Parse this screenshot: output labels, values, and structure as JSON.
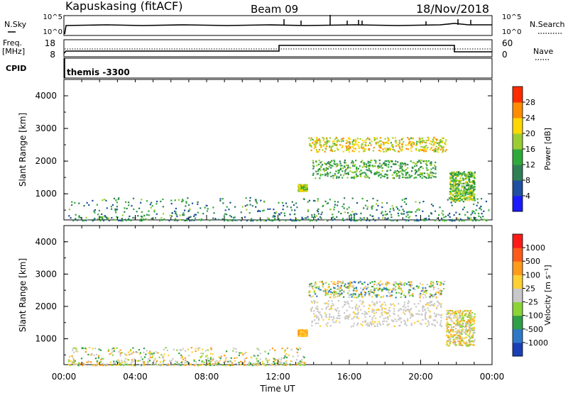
{
  "header": {
    "station": "Kapuskasing (fitACF)",
    "beam": "Beam 09",
    "date": "18/Nov/2018"
  },
  "noise_panel": {
    "left_label": "N.Sky",
    "left_ticks": [
      "10^5",
      "10^0"
    ],
    "right_ticks": [
      "10^5",
      "10^0"
    ],
    "right_label": "N.Search",
    "legend_style": "dotted"
  },
  "freq_panel": {
    "left_label_line1": "Freq.",
    "left_label_line2": "[MHz]",
    "left_ticks": [
      "18",
      "8"
    ],
    "right_ticks": [
      "60",
      "0"
    ],
    "right_label": "Nave",
    "legend_style": "dotted"
  },
  "cpid_panel": {
    "label": "CPID",
    "program": "themis -3300"
  },
  "chart_data": [
    {
      "type": "heatmap",
      "name": "power",
      "ylabel": "Slant Range [km]",
      "yticks": [
        "1000",
        "2000",
        "3000",
        "4000"
      ],
      "ylim": [
        200,
        4500
      ],
      "xlim": [
        0,
        24
      ],
      "colorbar": {
        "label": "Power [dB]",
        "ticks": [
          "4",
          "8",
          "12",
          "16",
          "20",
          "24",
          "28"
        ],
        "range": [
          0,
          30
        ],
        "colors": [
          "#1a1aff",
          "#1f4fa0",
          "#2f7f55",
          "#2faa3a",
          "#9acd32",
          "#ffd700",
          "#ff8c00",
          "#ff2a00"
        ]
      },
      "regions": [
        {
          "t0": 0.2,
          "t1": 23.9,
          "r0": 200,
          "r1": 900,
          "level": 9
        },
        {
          "t0": 13.7,
          "t1": 21.4,
          "r0": 2300,
          "r1": 2750,
          "level": 19
        },
        {
          "t0": 13.9,
          "t1": 20.8,
          "r0": 1500,
          "r1": 2050,
          "level": 12
        },
        {
          "t0": 21.6,
          "t1": 23.0,
          "r0": 800,
          "r1": 1700,
          "level": 14
        },
        {
          "t0": 13.1,
          "t1": 13.6,
          "r0": 1100,
          "r1": 1300,
          "level": 16
        }
      ]
    },
    {
      "type": "heatmap",
      "name": "velocity",
      "ylabel": "Slant Range [km]",
      "yticks": [
        "1000",
        "2000",
        "3000",
        "4000"
      ],
      "ylim": [
        200,
        4500
      ],
      "xlim": [
        0,
        24
      ],
      "xticks": [
        "00:00",
        "04:00",
        "08:00",
        "12:00",
        "16:00",
        "20:00",
        "00:00"
      ],
      "xlabel": "Time UT",
      "colorbar": {
        "label": "Velocity [m s⁻¹]",
        "ticks": [
          "1000",
          "500",
          "100",
          "25",
          "-25",
          "-100",
          "-500",
          "-1000"
        ],
        "colors": [
          "#1a3fb5",
          "#2f78c8",
          "#2f9f48",
          "#8bd436",
          "#c8c8c8",
          "#ffd033",
          "#ff9a1a",
          "#ff5a1a",
          "#ff1a1a"
        ]
      },
      "regions": [
        {
          "t0": 0.2,
          "t1": 13.5,
          "r0": 200,
          "r1": 750,
          "class": "mixed-green-gray"
        },
        {
          "t0": 13.7,
          "t1": 21.3,
          "r0": 2300,
          "r1": 2800,
          "class": "green-orange"
        },
        {
          "t0": 13.8,
          "t1": 21.2,
          "r0": 1400,
          "r1": 2200,
          "class": "gray"
        },
        {
          "t0": 21.4,
          "t1": 23.0,
          "r0": 800,
          "r1": 1900,
          "class": "orange-gray"
        },
        {
          "t0": 13.1,
          "t1": 13.6,
          "r0": 1100,
          "r1": 1300,
          "class": "orange"
        }
      ]
    }
  ]
}
